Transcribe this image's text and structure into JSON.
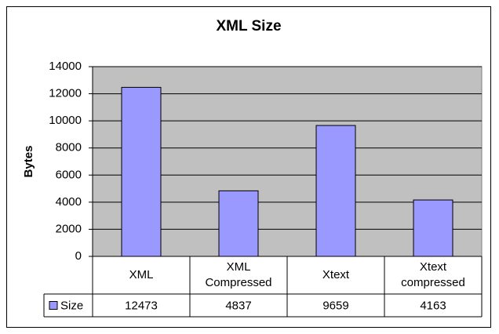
{
  "chart_data": {
    "type": "bar",
    "title": "XML Size",
    "y_label": "Bytes",
    "categories": [
      "XML",
      "XML Compressed",
      "Xtext",
      "Xtext compressed"
    ],
    "series": [
      {
        "name": "Size",
        "color": "#9999ff",
        "values": [
          12473,
          4837,
          9659,
          4163
        ]
      }
    ],
    "ylim": [
      0,
      14000
    ],
    "yticks": [
      0,
      2000,
      4000,
      6000,
      8000,
      10000,
      12000,
      14000
    ],
    "grid": true
  }
}
